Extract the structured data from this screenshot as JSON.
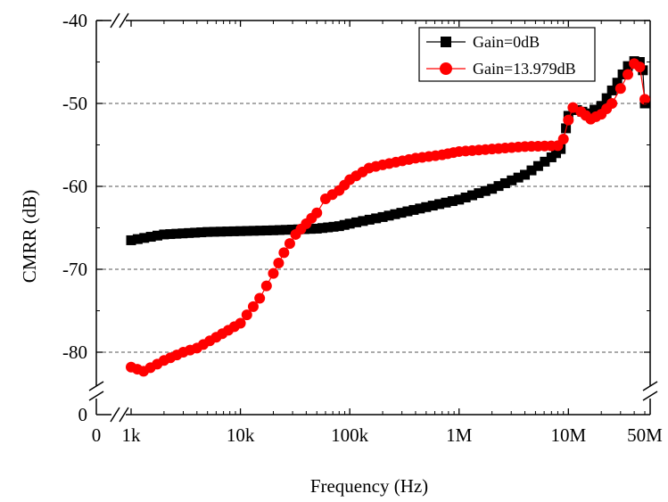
{
  "chart_data": {
    "type": "line",
    "title": "",
    "xlabel": "Frequency (Hz)",
    "ylabel": "CMRR (dB)",
    "x_scale": "log (broken axis: 0 then 1k–50M)",
    "ylim": [
      -84,
      -40
    ],
    "y_break": "axis break below -80, then 0",
    "grid": "dashed horizontal lines at -50, -60, -70, -80",
    "legend_position": "top-right",
    "x_ticks": [
      "0",
      "1k",
      "10k",
      "100k",
      "1M",
      "10M",
      "50M"
    ],
    "y_ticks": [
      "0",
      "-80",
      "-70",
      "-60",
      "-50",
      "-40"
    ],
    "series": [
      {
        "name": "Gain=0dB",
        "color": "#000000",
        "marker": "square",
        "points": [
          [
            1000,
            -66.5
          ],
          [
            2000,
            -65.8
          ],
          [
            5000,
            -65.5
          ],
          [
            10000,
            -65.4
          ],
          [
            20000,
            -65.3
          ],
          [
            50000,
            -65.1
          ],
          [
            80000,
            -64.8
          ],
          [
            100000,
            -64.5
          ],
          [
            200000,
            -63.7
          ],
          [
            500000,
            -62.5
          ],
          [
            1000000,
            -61.6
          ],
          [
            2000000,
            -60.3
          ],
          [
            4000000,
            -58.6
          ],
          [
            7000000,
            -56.5
          ],
          [
            8500000,
            -55.5
          ],
          [
            9500000,
            -53.0
          ],
          [
            10000000,
            -51.5
          ],
          [
            12000000,
            -50.8
          ],
          [
            15000000,
            -51.2
          ],
          [
            20000000,
            -50.3
          ],
          [
            28000000,
            -47.5
          ],
          [
            35000000,
            -45.5
          ],
          [
            40000000,
            -44.9
          ],
          [
            45000000,
            -45.0
          ],
          [
            48000000,
            -46.0
          ],
          [
            50000000,
            -50.0
          ]
        ]
      },
      {
        "name": "Gain=13.979dB",
        "color": "#ff0000",
        "marker": "circle",
        "points": [
          [
            1000,
            -81.8
          ],
          [
            1300,
            -82.3
          ],
          [
            2000,
            -81.0
          ],
          [
            3000,
            -80.0
          ],
          [
            4000,
            -79.5
          ],
          [
            6000,
            -78.2
          ],
          [
            10000,
            -76.5
          ],
          [
            15000,
            -73.5
          ],
          [
            20000,
            -70.5
          ],
          [
            25000,
            -68.0
          ],
          [
            32000,
            -65.8
          ],
          [
            40000,
            -64.5
          ],
          [
            50000,
            -63.2
          ],
          [
            60000,
            -61.5
          ],
          [
            80000,
            -60.5
          ],
          [
            100000,
            -59.2
          ],
          [
            150000,
            -57.8
          ],
          [
            200000,
            -57.4
          ],
          [
            400000,
            -56.6
          ],
          [
            700000,
            -56.2
          ],
          [
            1000000,
            -55.8
          ],
          [
            2000000,
            -55.5
          ],
          [
            4000000,
            -55.2
          ],
          [
            8000000,
            -55.1
          ],
          [
            9000000,
            -54.3
          ],
          [
            10000000,
            -52.0
          ],
          [
            11000000,
            -50.5
          ],
          [
            13000000,
            -51.0
          ],
          [
            16000000,
            -51.9
          ],
          [
            20000000,
            -51.3
          ],
          [
            25000000,
            -50.0
          ],
          [
            30000000,
            -48.2
          ],
          [
            35000000,
            -46.5
          ],
          [
            40000000,
            -45.2
          ],
          [
            45000000,
            -45.6
          ],
          [
            50000000,
            -49.5
          ]
        ]
      }
    ]
  }
}
